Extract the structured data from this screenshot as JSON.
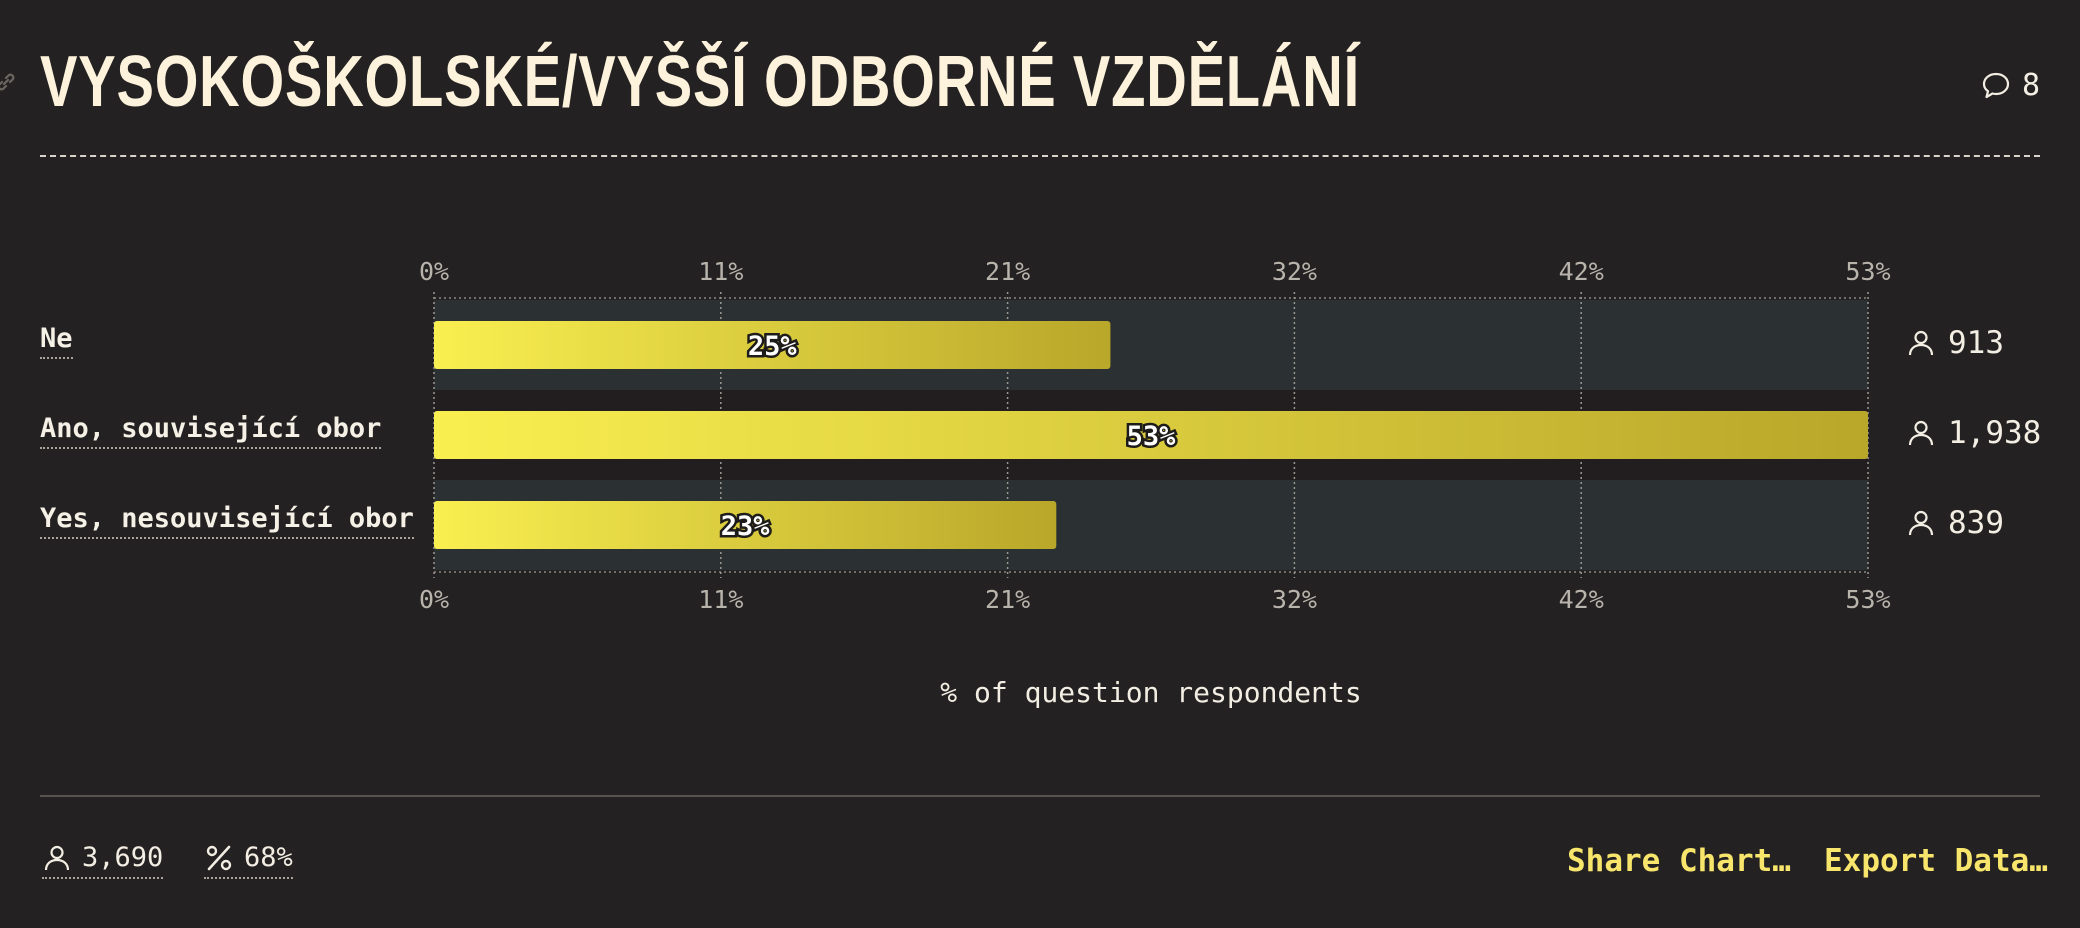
{
  "header": {
    "title": "VYSOKOŠKOLSKÉ/VYŠŠÍ ODBORNÉ VZDĚLÁNÍ",
    "comment_count": "8"
  },
  "chart_data": {
    "type": "bar",
    "orientation": "horizontal",
    "categories": [
      "Ne",
      "Ano, související obor",
      "Yes, nesouvisející obor"
    ],
    "values": [
      25,
      53,
      23
    ],
    "value_labels": [
      "25%",
      "53%",
      "23%"
    ],
    "counts": [
      "913",
      "1,938",
      "839"
    ],
    "x_ticks": [
      "0%",
      "11%",
      "21%",
      "32%",
      "42%",
      "53%"
    ],
    "x_tick_values": [
      0,
      10.6,
      21.2,
      31.8,
      42.4,
      53
    ],
    "xlim": [
      0,
      53
    ],
    "xlabel": "% of question respondents",
    "grid": true,
    "colors": {
      "bar_start": "#f9ef50",
      "bar_end": "#b9a72a",
      "track_odd": "#2b3032",
      "track_even": "#221e20"
    }
  },
  "footer": {
    "total_respondents": "3,690",
    "response_rate": "68%",
    "share_label": "Share Chart…",
    "export_label": "Export Data…"
  }
}
